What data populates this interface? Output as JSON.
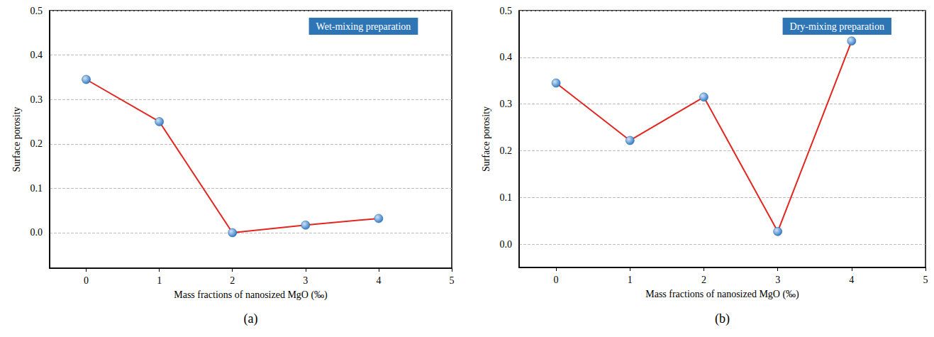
{
  "chart_data": [
    {
      "type": "line",
      "title": "Wet-mixing preparation",
      "panel_label": "(a)",
      "x_label": "Mass fractions of nanosized MgO (‰)",
      "y_label": "Surface porosity",
      "series": [
        {
          "name": "Wet-mixing preparation",
          "color": "#e3261f",
          "marker": "circle",
          "x": [
            0,
            1,
            2,
            3,
            4
          ],
          "values": [
            0.345,
            0.25,
            0.0,
            0.017,
            0.032
          ]
        }
      ],
      "xlim": [
        -0.5,
        5
      ],
      "xticks": [
        0,
        1,
        2,
        3,
        4,
        5
      ],
      "ylim": [
        -0.08,
        0.5
      ],
      "yticks": [
        {
          "value": 0,
          "label": "0.0"
        },
        0.1,
        0.2,
        0.3,
        0.4,
        0.5
      ],
      "grid": true
    },
    {
      "type": "line",
      "title": "Dry-mixing preparation",
      "panel_label": "(b)",
      "x_label": "Mass fractions of nanosized MgO (‰)",
      "y_label": "Surface porosity",
      "series": [
        {
          "name": "Dry-mixing preparation",
          "color": "#e3261f",
          "marker": "circle",
          "x": [
            0,
            1,
            2,
            3,
            4
          ],
          "values": [
            0.345,
            0.222,
            0.315,
            0.027,
            0.435
          ]
        }
      ],
      "xlim": [
        -0.5,
        5
      ],
      "xticks": [
        0,
        1,
        2,
        3,
        4,
        5
      ],
      "ylim": [
        -0.05,
        0.5
      ],
      "yticks": [
        {
          "value": 0,
          "label": "0.0"
        },
        0.1,
        0.2,
        0.3,
        0.4,
        0.5
      ],
      "grid": true
    }
  ]
}
